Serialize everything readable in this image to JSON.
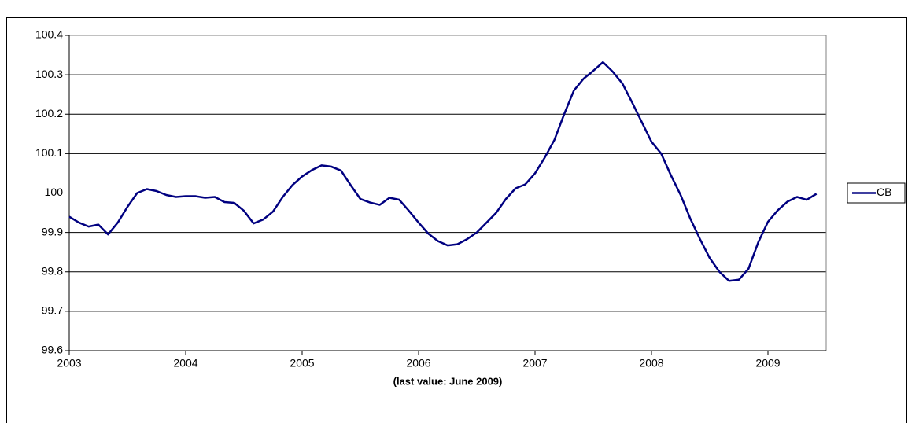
{
  "chart_data": {
    "type": "line",
    "x_label": "(last value: June 2009)",
    "categories": [
      "2003",
      null,
      null,
      null,
      null,
      null,
      null,
      null,
      null,
      null,
      null,
      null,
      "2004",
      null,
      null,
      null,
      null,
      null,
      null,
      null,
      null,
      null,
      null,
      null,
      "2005",
      null,
      null,
      null,
      null,
      null,
      null,
      null,
      null,
      null,
      null,
      null,
      "2006",
      null,
      null,
      null,
      null,
      null,
      null,
      null,
      null,
      null,
      null,
      null,
      "2007",
      null,
      null,
      null,
      null,
      null,
      null,
      null,
      null,
      null,
      null,
      null,
      "2008",
      null,
      null,
      null,
      null,
      null,
      null,
      null,
      null,
      null,
      null,
      null,
      "2009",
      null,
      null,
      null,
      null,
      null
    ],
    "series": [
      {
        "name": "CB",
        "color": "#000080",
        "values": [
          99.94,
          99.925,
          99.915,
          99.92,
          99.895,
          99.925,
          99.965,
          100.0,
          100.01,
          100.005,
          99.995,
          99.99,
          99.992,
          99.992,
          99.988,
          99.99,
          99.977,
          99.975,
          99.955,
          99.923,
          99.933,
          99.953,
          99.99,
          100.02,
          100.042,
          100.058,
          100.07,
          100.067,
          100.057,
          100.02,
          99.985,
          99.976,
          99.97,
          99.988,
          99.983,
          99.955,
          99.925,
          99.897,
          99.878,
          99.867,
          99.87,
          99.883,
          99.9,
          99.925,
          99.95,
          99.985,
          100.012,
          100.022,
          100.05,
          100.09,
          100.135,
          100.2,
          100.26,
          100.29,
          100.31,
          100.332,
          100.308,
          100.278,
          100.23,
          100.18,
          100.13,
          100.1,
          100.045,
          99.995,
          99.935,
          99.883,
          99.835,
          99.8,
          99.777,
          99.78,
          99.808,
          99.875,
          99.927,
          99.956,
          99.978,
          99.99,
          99.983,
          99.998
        ]
      }
    ],
    "ylim": [
      99.6,
      100.4
    ],
    "yticks": [
      99.6,
      99.7,
      99.8,
      99.9,
      100,
      100.1,
      100.2,
      100.3,
      100.4
    ],
    "grid": true,
    "legend": "right"
  }
}
